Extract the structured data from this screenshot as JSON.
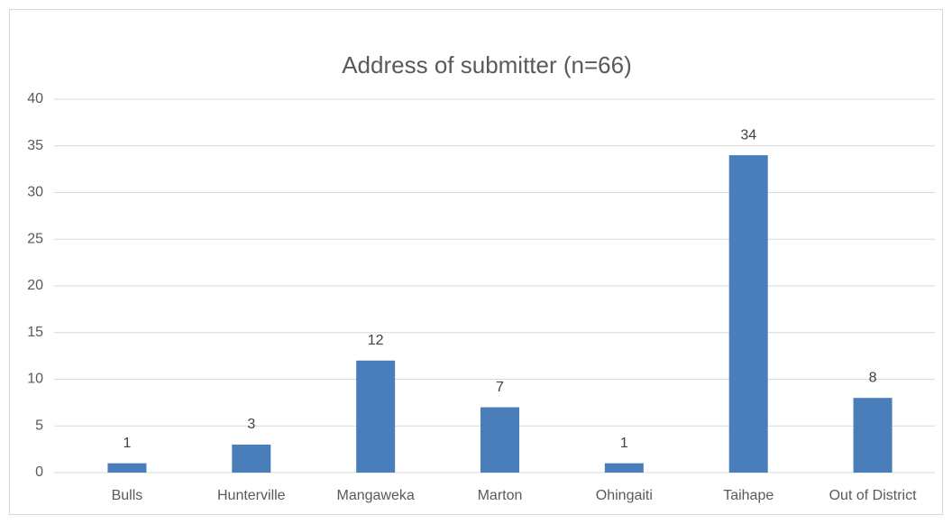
{
  "chart_data": {
    "type": "bar",
    "title": "Address of submitter (n=66)",
    "categories": [
      "Bulls",
      "Hunterville",
      "Mangaweka",
      "Marton",
      "Ohingaiti",
      "Taihape",
      "Out of District"
    ],
    "values": [
      1,
      3,
      12,
      7,
      1,
      34,
      8
    ],
    "color": "#4a7ebb",
    "ylim": [
      0,
      40
    ],
    "yticks": [
      0,
      5,
      10,
      15,
      20,
      25,
      30,
      35,
      40
    ],
    "grid": true
  }
}
